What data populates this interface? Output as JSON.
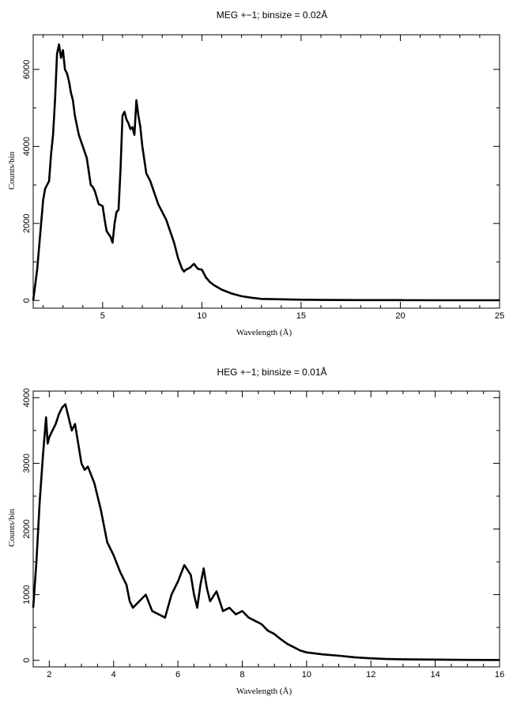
{
  "chart_data": [
    {
      "type": "line",
      "title": "MEG +−1; binsize = 0.02Å",
      "xlabel": "Wavelength (Å)",
      "ylabel": "Counts/bin",
      "xlim": [
        1.5,
        25
      ],
      "ylim": [
        -200,
        6900
      ],
      "xticks": [
        5,
        10,
        15,
        20,
        25
      ],
      "xtick_labels": [
        "5",
        "10",
        "15",
        "20",
        "25"
      ],
      "yticks": [
        0,
        2000,
        4000,
        6000
      ],
      "ytick_labels": [
        "0",
        "2000",
        "4000",
        "6000"
      ],
      "grid": false,
      "series": [
        {
          "x": [
            1.5,
            1.7,
            1.9,
            2.0,
            2.1,
            2.2,
            2.3,
            2.4,
            2.5,
            2.6,
            2.7,
            2.8,
            2.9,
            3.0,
            3.1,
            3.2,
            3.3,
            3.4,
            3.5,
            3.6,
            3.8,
            4.0,
            4.2,
            4.4,
            4.5,
            4.6,
            4.8,
            5.0,
            5.1,
            5.2,
            5.4,
            5.5,
            5.6,
            5.7,
            5.8,
            5.9,
            6.0,
            6.1,
            6.2,
            6.3,
            6.4,
            6.5,
            6.6,
            6.7,
            6.8,
            6.9,
            7.0,
            7.2,
            7.4,
            7.6,
            7.8,
            8.0,
            8.2,
            8.4,
            8.6,
            8.8,
            9.0,
            9.1,
            9.2,
            9.4,
            9.6,
            9.8,
            10.0,
            10.2,
            10.4,
            10.6,
            11.0,
            11.5,
            12.0,
            12.5,
            13.0,
            14.0,
            15.0,
            16.0,
            18.0,
            20.0,
            22.0,
            25.0
          ],
          "y": [
            0,
            800,
            2000,
            2600,
            2900,
            3000,
            3100,
            3800,
            4300,
            5200,
            6400,
            6650,
            6300,
            6500,
            6000,
            5900,
            5700,
            5400,
            5200,
            4800,
            4300,
            4000,
            3700,
            3000,
            2950,
            2850,
            2500,
            2450,
            2100,
            1800,
            1650,
            1500,
            2000,
            2300,
            2350,
            3400,
            4800,
            4900,
            4700,
            4600,
            4450,
            4500,
            4300,
            5200,
            4800,
            4500,
            4000,
            3300,
            3100,
            2800,
            2500,
            2300,
            2100,
            1800,
            1500,
            1100,
            820,
            750,
            800,
            850,
            950,
            820,
            800,
            600,
            480,
            400,
            280,
            180,
            110,
            70,
            40,
            30,
            20,
            15,
            10,
            8,
            5,
            5
          ]
        }
      ]
    },
    {
      "type": "line",
      "title": "HEG +−1; binsize = 0.01Å",
      "xlabel": "Wavelength (Å)",
      "ylabel": "Counts/bin",
      "xlim": [
        1.5,
        16
      ],
      "ylim": [
        -100,
        4100
      ],
      "xticks": [
        2,
        4,
        6,
        8,
        10,
        12,
        14,
        16
      ],
      "xtick_labels": [
        "2",
        "4",
        "6",
        "8",
        "10",
        "12",
        "14",
        "16"
      ],
      "yticks": [
        0,
        1000,
        2000,
        3000,
        4000
      ],
      "ytick_labels": [
        "0",
        "1000",
        "2000",
        "3000",
        "4000"
      ],
      "grid": false,
      "series": [
        {
          "x": [
            1.5,
            1.6,
            1.7,
            1.8,
            1.9,
            1.95,
            2.0,
            2.1,
            2.2,
            2.3,
            2.4,
            2.5,
            2.6,
            2.7,
            2.8,
            2.9,
            3.0,
            3.1,
            3.2,
            3.4,
            3.6,
            3.8,
            4.0,
            4.2,
            4.4,
            4.5,
            4.6,
            4.8,
            5.0,
            5.2,
            5.4,
            5.6,
            5.8,
            6.0,
            6.2,
            6.4,
            6.5,
            6.6,
            6.7,
            6.8,
            6.9,
            7.0,
            7.2,
            7.4,
            7.6,
            7.8,
            8.0,
            8.2,
            8.4,
            8.6,
            8.8,
            9.0,
            9.2,
            9.4,
            9.6,
            9.8,
            10.0,
            10.5,
            11.0,
            11.5,
            12.0,
            12.5,
            13.0,
            14.0,
            15.0,
            16.0
          ],
          "y": [
            800,
            1500,
            2400,
            3100,
            3700,
            3300,
            3400,
            3500,
            3600,
            3750,
            3850,
            3900,
            3700,
            3500,
            3600,
            3300,
            3000,
            2900,
            2950,
            2700,
            2300,
            1800,
            1600,
            1350,
            1150,
            900,
            800,
            900,
            1000,
            750,
            700,
            650,
            1000,
            1200,
            1450,
            1300,
            1000,
            800,
            1150,
            1400,
            1100,
            900,
            1050,
            750,
            800,
            700,
            750,
            650,
            600,
            550,
            450,
            400,
            320,
            250,
            200,
            150,
            120,
            90,
            70,
            45,
            30,
            20,
            15,
            10,
            6,
            5
          ]
        }
      ]
    }
  ]
}
